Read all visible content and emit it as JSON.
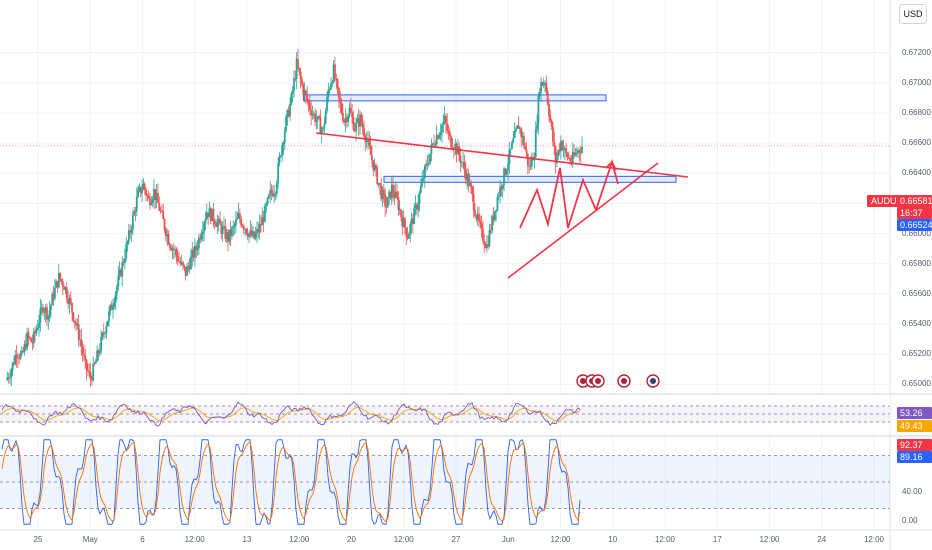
{
  "toolbar": {
    "currency_label": "USD"
  },
  "chart_data": {
    "type": "line",
    "symbol": "AUDUSD",
    "last_price": "0.66581",
    "countdown": "16:37",
    "level_label": "0.66524",
    "y_ticks": [
      "0.67200",
      "0.67000",
      "0.66800",
      "0.66600",
      "0.66400",
      "0.66200",
      "0.66000",
      "0.65800",
      "0.65600",
      "0.65400",
      "0.65200",
      "0.65000"
    ],
    "x_ticks": [
      "25",
      "May",
      "6",
      "12:00",
      "13",
      "12:00",
      "20",
      "12:00",
      "27",
      "Jun",
      "12:00",
      "10",
      "12:00",
      "17",
      "12:00",
      "24",
      "12:00"
    ],
    "ylim": [
      0.6495,
      0.6735
    ],
    "price_series": [
      0.6503,
      0.651,
      0.6522,
      0.6518,
      0.6531,
      0.6528,
      0.654,
      0.6552,
      0.6546,
      0.656,
      0.6571,
      0.6566,
      0.6555,
      0.6543,
      0.653,
      0.6512,
      0.6504,
      0.6515,
      0.6528,
      0.6541,
      0.6552,
      0.6565,
      0.6579,
      0.6594,
      0.661,
      0.6626,
      0.6632,
      0.6622,
      0.6628,
      0.6617,
      0.6605,
      0.6594,
      0.6588,
      0.658,
      0.6574,
      0.6583,
      0.659,
      0.6603,
      0.6615,
      0.6612,
      0.6607,
      0.6602,
      0.6597,
      0.6603,
      0.6611,
      0.6606,
      0.66,
      0.6597,
      0.6604,
      0.6614,
      0.6626,
      0.6631,
      0.6655,
      0.6674,
      0.6689,
      0.6712,
      0.6698,
      0.6688,
      0.668,
      0.6674,
      0.6668,
      0.6695,
      0.6708,
      0.6688,
      0.6675,
      0.6682,
      0.667,
      0.6676,
      0.6665,
      0.6652,
      0.664,
      0.6627,
      0.6618,
      0.663,
      0.6622,
      0.6609,
      0.6599,
      0.661,
      0.6622,
      0.6638,
      0.665,
      0.6662,
      0.6668,
      0.6675,
      0.6662,
      0.6658,
      0.665,
      0.664,
      0.6628,
      0.6612,
      0.66,
      0.6592,
      0.6608,
      0.6624,
      0.6636,
      0.6648,
      0.6661,
      0.6672,
      0.666,
      0.6643,
      0.6655,
      0.6698,
      0.6702,
      0.6675,
      0.6648,
      0.6661,
      0.6652,
      0.6648,
      0.6654,
      0.6658
    ],
    "levels": [
      {
        "name": "resistance zone",
        "value": 0.669
      },
      {
        "name": "support zone",
        "value": 0.6636
      }
    ],
    "projection": [
      0.6638,
      0.6684,
      0.6656,
      0.6692,
      0.6671,
      0.6698
    ],
    "rsi": {
      "value": "53.26",
      "signal": "49.43",
      "lines": [
        70,
        50,
        30
      ]
    },
    "stoch": {
      "k": "92.37",
      "d": "89.16",
      "ticks": [
        "40.00",
        "0.00"
      ],
      "lines": [
        80,
        50,
        20
      ]
    },
    "colors": {
      "up": "#26a69a",
      "down": "#ef5350",
      "trend": "#f23645",
      "zone": "#2962ff",
      "rsi": "#7e57c2",
      "rsi_ma": "#f7a600",
      "stoch_k": "#2962ff",
      "stoch_d": "#ff6d00"
    }
  }
}
